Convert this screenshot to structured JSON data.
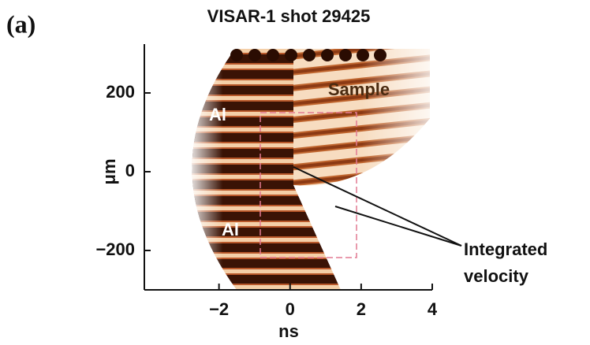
{
  "chart_data": {
    "type": "image",
    "panel_label": "(a)",
    "title": "VISAR-1 shot 29425",
    "x_label": "ns",
    "y_label": "μm",
    "xlim": [
      -4.1,
      4
    ],
    "xticks": [
      {
        "value": -2,
        "label": "−2"
      },
      0,
      2,
      4
    ],
    "ylim": [
      -300,
      324
    ],
    "yticks": [
      {
        "value": -200,
        "label": "−200"
      },
      0,
      200
    ],
    "annotations": [
      "Sample",
      "Al",
      "Al",
      "Integrated",
      "velocity"
    ]
  }
}
